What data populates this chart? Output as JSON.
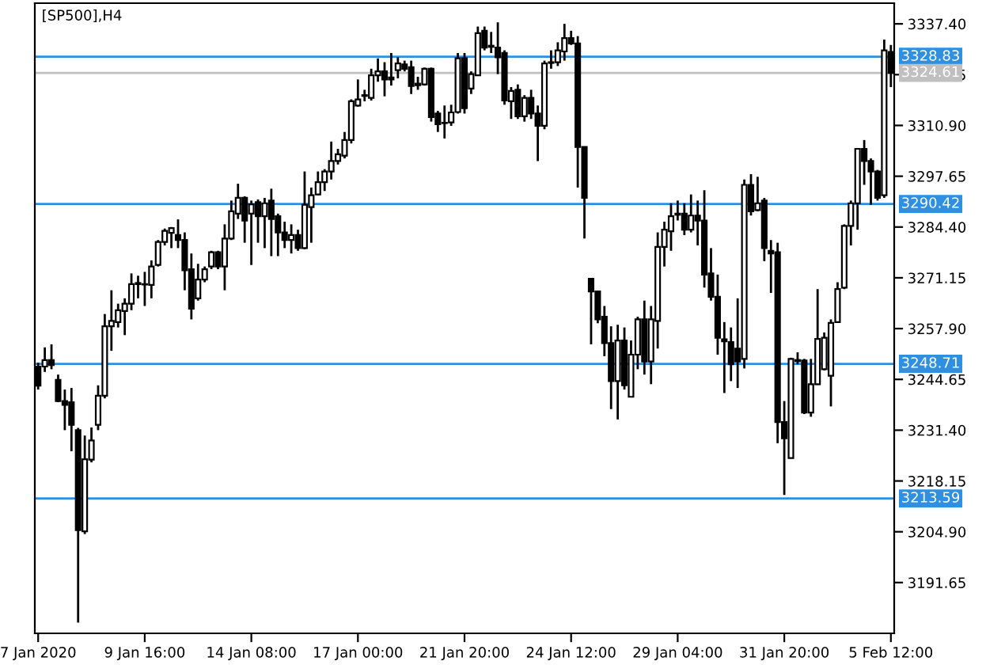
{
  "chart_data": {
    "type": "candlestick",
    "title": "[SP500],H4",
    "color": "#000000",
    "categories": [
      "7 Jan 2020",
      null,
      null,
      null,
      null,
      null,
      null,
      null,
      null,
      null,
      null,
      null,
      null,
      null,
      null,
      null,
      "9 Jan 16:00",
      null,
      null,
      null,
      null,
      null,
      null,
      null,
      null,
      null,
      null,
      null,
      null,
      null,
      null,
      null,
      "14 Jan 08:00",
      null,
      null,
      null,
      null,
      null,
      null,
      null,
      null,
      null,
      null,
      null,
      null,
      null,
      null,
      null,
      "17 Jan 00:00",
      null,
      null,
      null,
      null,
      null,
      null,
      null,
      null,
      null,
      null,
      null,
      null,
      null,
      null,
      null,
      "21 Jan 20:00",
      null,
      null,
      null,
      null,
      null,
      null,
      null,
      null,
      null,
      null,
      null,
      null,
      null,
      null,
      null,
      "24 Jan 12:00",
      null,
      null,
      null,
      null,
      null,
      null,
      null,
      null,
      null,
      null,
      null,
      null,
      null,
      null,
      null,
      "29 Jan 04:00",
      null,
      null,
      null,
      null,
      null,
      null,
      null,
      null,
      null,
      null,
      null,
      null,
      null,
      null,
      null,
      "31 Jan 20:00",
      null,
      null,
      null,
      null,
      null,
      null,
      null,
      null,
      null,
      null,
      null,
      null,
      null,
      null,
      null,
      "5 Feb 12:00"
    ],
    "ohlc": [
      [
        3248,
        3249,
        3242,
        3243
      ],
      [
        3248,
        3253,
        3246.6,
        3249.7
      ],
      [
        3249.7,
        3253.8,
        3247.3,
        3248.4
      ],
      [
        3244.5,
        3245.9,
        3238.7,
        3239
      ],
      [
        3239,
        3242,
        3231.4,
        3238
      ],
      [
        3238.7,
        3242.4,
        3225.9,
        3232.8
      ],
      [
        3231.4,
        3232,
        3181.2,
        3205.3
      ],
      [
        3205,
        3230,
        3204.3,
        3223.8
      ],
      [
        3223.7,
        3232.1,
        3223,
        3228.7
      ],
      [
        3232.8,
        3243.1,
        3231.4,
        3240.4
      ],
      [
        3240.4,
        3261.7,
        3239.7,
        3258.5
      ],
      [
        3258.5,
        3267.9,
        3252.1,
        3259.9
      ],
      [
        3259.6,
        3264.4,
        3258.2,
        3262.7
      ],
      [
        3262.5,
        3265.8,
        3256.2,
        3264.4
      ],
      [
        3264.4,
        3272.3,
        3262.7,
        3269.5
      ],
      [
        3269.5,
        3271.7,
        3265.8,
        3269.8
      ],
      [
        3269.5,
        3272.7,
        3263.8,
        3269.4
      ],
      [
        3269.3,
        3275.7,
        3265.8,
        3274.1
      ],
      [
        3274.5,
        3281,
        3274.1,
        3280.5
      ],
      [
        3280.5,
        3284,
        3279.6,
        3283.4
      ],
      [
        3282.9,
        3284.4,
        3278.9,
        3284.1
      ],
      [
        3282.3,
        3286.4,
        3278.9,
        3281
      ],
      [
        3281,
        3283,
        3267.9,
        3273.1
      ],
      [
        3273.4,
        3277.5,
        3260.3,
        3263.1
      ],
      [
        3265.8,
        3274.8,
        3265.2,
        3270.7
      ],
      [
        3270.7,
        3274.1,
        3270,
        3273.4
      ],
      [
        3274.1,
        3278.2,
        3273.4,
        3277.8
      ],
      [
        3277.8,
        3278.2,
        3273.4,
        3274.1
      ],
      [
        3274.1,
        3285.1,
        3267.9,
        3281.4
      ],
      [
        3281.4,
        3291.3,
        3281,
        3288.5
      ],
      [
        3287.9,
        3295.7,
        3286.5,
        3292
      ],
      [
        3292,
        3292.4,
        3280.3,
        3286.1
      ],
      [
        3287.9,
        3291.3,
        3274.5,
        3290.3
      ],
      [
        3290.9,
        3291.6,
        3280.3,
        3287.2
      ],
      [
        3287.2,
        3292,
        3278.9,
        3290.6
      ],
      [
        3291.3,
        3294.4,
        3276.8,
        3286.5
      ],
      [
        3287.2,
        3287.9,
        3276.8,
        3283
      ],
      [
        3283,
        3285.8,
        3278.9,
        3281
      ],
      [
        3281,
        3285.1,
        3277.5,
        3282.3
      ],
      [
        3282.3,
        3283.7,
        3278.2,
        3278.9
      ],
      [
        3278.9,
        3298.9,
        3278.6,
        3290.2
      ],
      [
        3289.6,
        3294.7,
        3280.3,
        3292.7
      ],
      [
        3292.9,
        3298.9,
        3292.7,
        3296.1
      ],
      [
        3296.1,
        3299.5,
        3293.8,
        3298.9
      ],
      [
        3298.9,
        3306.7,
        3296.8,
        3301.6
      ],
      [
        3301.6,
        3304.8,
        3300.7,
        3303.4
      ],
      [
        3303,
        3309.2,
        3302.3,
        3307.1
      ],
      [
        3307.1,
        3317.7,
        3306.2,
        3317.2
      ],
      [
        3316.1,
        3322.9,
        3315.8,
        3317.7
      ],
      [
        3318.6,
        3320.2,
        3317.2,
        3318.8
      ],
      [
        3318.1,
        3325.7,
        3317.4,
        3324
      ],
      [
        3324,
        3328.4,
        3322.3,
        3325
      ],
      [
        3325,
        3327.4,
        3318.5,
        3322.9
      ],
      [
        3323.4,
        3329.8,
        3321.3,
        3322.9
      ],
      [
        3325.3,
        3328.7,
        3323.2,
        3327.1
      ],
      [
        3326.8,
        3327.8,
        3325,
        3325.7
      ],
      [
        3326.1,
        3327.8,
        3319.1,
        3321.2
      ],
      [
        3321.8,
        3323.6,
        3320.2,
        3321.4
      ],
      [
        3321.6,
        3326,
        3321.3,
        3325.7
      ],
      [
        3325.7,
        3326,
        3311.9,
        3313.1
      ],
      [
        3314,
        3314.7,
        3309.2,
        3311.2
      ],
      [
        3311.6,
        3316.1,
        3307.5,
        3311.5
      ],
      [
        3311.7,
        3316.3,
        3310.8,
        3314.3
      ],
      [
        3314.4,
        3329.8,
        3314,
        3328.4
      ],
      [
        3328.4,
        3329.8,
        3314,
        3315.4
      ],
      [
        3320.5,
        3325,
        3319.1,
        3324.3
      ],
      [
        3324,
        3336.7,
        3324,
        3335
      ],
      [
        3335.6,
        3336.7,
        3330.5,
        3331.2
      ],
      [
        3331.7,
        3335.3,
        3329.8,
        3331.4
      ],
      [
        3331.2,
        3337.8,
        3324.3,
        3328.7
      ],
      [
        3329.8,
        3330.5,
        3316.3,
        3317.4
      ],
      [
        3317.2,
        3320.9,
        3312.6,
        3319.9
      ],
      [
        3320.2,
        3321.6,
        3312.6,
        3313.3
      ],
      [
        3313.3,
        3318.8,
        3311.9,
        3318.1
      ],
      [
        3318.1,
        3320.2,
        3312.6,
        3314
      ],
      [
        3314,
        3316.1,
        3301.6,
        3310.8
      ],
      [
        3310.8,
        3327.8,
        3309.9,
        3327.1
      ],
      [
        3327.4,
        3330.5,
        3325.7,
        3327.2
      ],
      [
        3327.4,
        3332.6,
        3326.4,
        3330.5
      ],
      [
        3330.2,
        3337.4,
        3327.8,
        3333.7
      ],
      [
        3333.7,
        3335.6,
        3331.9,
        3332.3
      ],
      [
        3332.3,
        3334.2,
        3294.7,
        3305.3
      ],
      [
        3305.3,
        3305.3,
        3281.4,
        3292
      ],
      [
        3270.9,
        3270.9,
        3253.8,
        3267.6
      ],
      [
        3267.6,
        3267.6,
        3259.3,
        3260.3
      ],
      [
        3261,
        3263.8,
        3250.7,
        3254.1
      ],
      [
        3254.1,
        3258.5,
        3236.9,
        3244.2
      ],
      [
        3244.2,
        3258.9,
        3234.2,
        3254.8
      ],
      [
        3254.8,
        3258.2,
        3242,
        3243.1
      ],
      [
        3240.1,
        3254.8,
        3240.1,
        3251.1
      ],
      [
        3251.1,
        3261,
        3247.3,
        3260.3
      ],
      [
        3260.3,
        3265.2,
        3245.9,
        3249.3
      ],
      [
        3249.3,
        3263.8,
        3243.4,
        3260.3
      ],
      [
        3259.9,
        3283,
        3252.7,
        3279.2
      ],
      [
        3279.2,
        3285.8,
        3274.1,
        3283.7
      ],
      [
        3283.3,
        3290.6,
        3278.2,
        3287.2
      ],
      [
        3287.6,
        3291.3,
        3286.1,
        3287.9
      ],
      [
        3287.9,
        3290.6,
        3282.3,
        3283.7
      ],
      [
        3283.7,
        3292.9,
        3283,
        3287.4
      ],
      [
        3287.4,
        3291.3,
        3279.6,
        3286.1
      ],
      [
        3286.1,
        3294,
        3268.6,
        3272
      ],
      [
        3272.3,
        3278.9,
        3265.2,
        3266.2
      ],
      [
        3266.2,
        3272,
        3251.1,
        3255.5
      ],
      [
        3255.1,
        3259.6,
        3241.1,
        3254.6
      ],
      [
        3254.4,
        3258.2,
        3244.2,
        3248.6
      ],
      [
        3252.7,
        3265.8,
        3242.4,
        3249.3
      ],
      [
        3250,
        3296.8,
        3247.5,
        3295.4
      ],
      [
        3295.4,
        3298.2,
        3287.4,
        3288.5
      ],
      [
        3288.8,
        3297.5,
        3288.5,
        3290.6
      ],
      [
        3291.3,
        3292,
        3275.5,
        3278.9
      ],
      [
        3278.2,
        3281,
        3267.2,
        3277.5
      ],
      [
        3277.8,
        3280.3,
        3228,
        3233.5
      ],
      [
        3233.5,
        3239,
        3214.5,
        3229.3
      ],
      [
        3224.1,
        3250.3,
        3224.1,
        3250
      ],
      [
        3249.4,
        3251.7,
        3248.6,
        3249.7
      ],
      [
        3249.6,
        3250,
        3235.6,
        3236
      ],
      [
        3236,
        3250,
        3234.9,
        3243.4
      ],
      [
        3243.4,
        3268.2,
        3243.2,
        3255.2
      ],
      [
        3247.3,
        3256.9,
        3247,
        3255.5
      ],
      [
        3245.6,
        3260.3,
        3237.6,
        3259.4
      ],
      [
        3259.6,
        3270,
        3259.4,
        3268.2
      ],
      [
        3268.6,
        3285.1,
        3268.2,
        3284.7
      ],
      [
        3284.7,
        3291.3,
        3279.6,
        3290.6
      ],
      [
        3290.6,
        3305,
        3283.7,
        3304.8
      ],
      [
        3304.8,
        3307.1,
        3295.4,
        3301.6
      ],
      [
        3301.6,
        3302.3,
        3290.2,
        3298.9
      ],
      [
        3298.9,
        3299.3,
        3291.3,
        3292
      ],
      [
        3292.7,
        3333.3,
        3292,
        3330.5
      ],
      [
        3330.1,
        3331.9,
        3320.9,
        3324.6
      ]
    ],
    "ylim": [
      3178.4,
      3342.8
    ],
    "yticks": [
      {
        "value": 3337.4,
        "label": "3337.40"
      },
      3324.15,
      {
        "value": 3310.9,
        "label": "3310.90"
      },
      3297.65,
      {
        "value": 3284.4,
        "label": "3284.40"
      },
      3271.15,
      {
        "value": 3257.9,
        "label": "3257.90"
      },
      3244.65,
      {
        "value": 3231.4,
        "label": "3231.40"
      },
      3218.15,
      {
        "value": 3204.9,
        "label": "3204.90"
      },
      3191.65
    ],
    "ref_lines": [
      {
        "axis": "y",
        "value": 3328.83,
        "label": "3328.83",
        "color": "#2f8fe0"
      },
      {
        "axis": "y",
        "value": 3324.61,
        "label": "3324.61",
        "color": "#c0c0c0"
      },
      {
        "axis": "y",
        "value": 3290.42,
        "label": "3290.42",
        "color": "#2f8fe0"
      },
      {
        "axis": "y",
        "value": 3248.71,
        "label": "3248.71",
        "color": "#2f8fe0"
      },
      {
        "axis": "y",
        "value": 3213.59,
        "label": "3213.59",
        "color": "#2f8fe0"
      }
    ],
    "grid": false,
    "legend": false
  }
}
